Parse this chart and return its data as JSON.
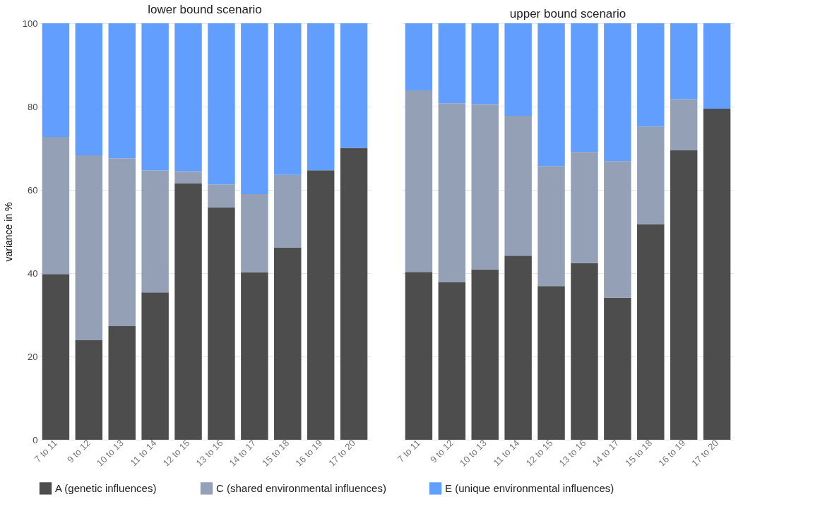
{
  "chart_data": [
    {
      "type": "bar",
      "title": "lower bound scenario",
      "ylabel": "variance in %",
      "stacked": true,
      "ylim": [
        0,
        100
      ],
      "yticks": [
        0,
        20,
        40,
        60,
        80,
        100
      ],
      "grid": "y",
      "legend": "bottom",
      "categories": [
        "7 to 11",
        "9 to 12",
        "10 to 13",
        "11 to 14",
        "12 to 15",
        "13 to 16",
        "14 to 17",
        "15 to 18",
        "16 to 19",
        "17 to 20"
      ],
      "series": [
        {
          "name": "A (genetic influences)",
          "color": "#4d4d4d",
          "values": [
            39.8,
            24.0,
            27.3,
            35.4,
            61.6,
            55.8,
            40.2,
            46.2,
            64.7,
            70.1
          ]
        },
        {
          "name": "C (shared environmental influences)",
          "color": "#94a0b6",
          "values": [
            32.9,
            44.3,
            40.3,
            29.3,
            2.9,
            5.5,
            18.8,
            17.4,
            0,
            0
          ]
        },
        {
          "name": "E (unique environmental influences)",
          "color": "#619efe",
          "values": [
            27.3,
            31.7,
            32.4,
            35.3,
            35.5,
            38.7,
            41.0,
            36.4,
            35.3,
            29.9
          ]
        }
      ]
    },
    {
      "type": "bar",
      "title": "upper bound scenario",
      "stacked": true,
      "ylim": [
        0,
        100
      ],
      "yticks": [
        0,
        20,
        40,
        60,
        80,
        100
      ],
      "grid": "y",
      "legend": "bottom",
      "tick_labels": "x",
      "categories": [
        "7 to 11",
        "9 to 12",
        "10 to 13",
        "11 to 14",
        "12 to 15",
        "13 to 16",
        "14 to 17",
        "15 to 18",
        "16 to 19",
        "17 to 20"
      ],
      "series": [
        {
          "name": "A (genetic influences)",
          "color": "#4d4d4d",
          "values": [
            40.3,
            37.9,
            40.9,
            44.2,
            36.9,
            42.4,
            34.1,
            51.7,
            69.5,
            79.5
          ]
        },
        {
          "name": "C (shared environmental influences)",
          "color": "#94a0b6",
          "values": [
            43.6,
            42.9,
            39.7,
            33.6,
            28.8,
            26.7,
            32.8,
            23.5,
            12.3,
            0
          ]
        },
        {
          "name": "E (unique environmental influences)",
          "color": "#619efe",
          "values": [
            16.1,
            19.2,
            19.4,
            22.2,
            34.3,
            30.9,
            33.1,
            24.8,
            18.2,
            20.5
          ]
        }
      ]
    }
  ]
}
